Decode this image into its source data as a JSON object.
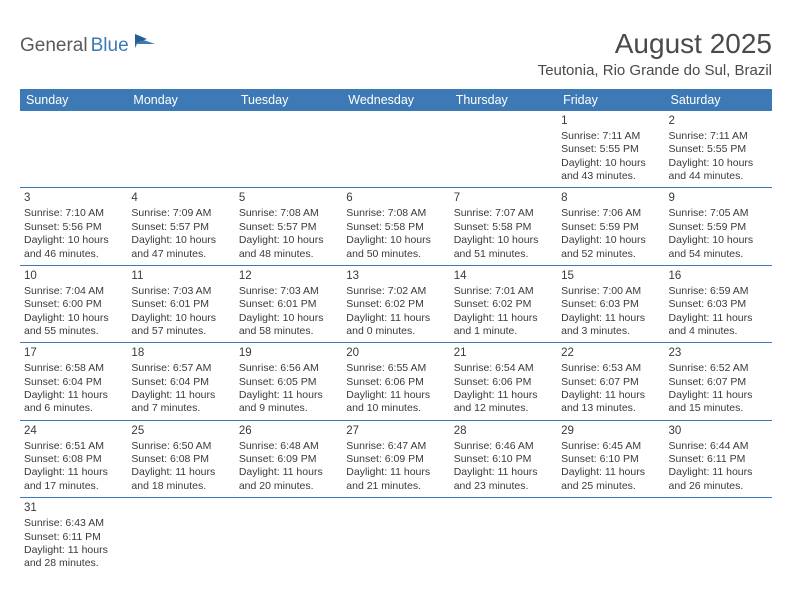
{
  "logo": {
    "text1": "General",
    "text2": "Blue"
  },
  "title": "August 2025",
  "location": "Teutonia, Rio Grande do Sul, Brazil",
  "colors": {
    "header_bg": "#3d7ab5",
    "header_text": "#ffffff",
    "grid_line": "#3d7ab5",
    "body_text": "#3a3a3a",
    "title_text": "#4a4a4a",
    "logo_gray": "#5a5a5a",
    "logo_blue": "#3d7ab5",
    "background": "#ffffff"
  },
  "typography": {
    "title_fontsize": 28,
    "location_fontsize": 15,
    "dayheader_fontsize": 12.5,
    "daynum_fontsize": 11.5,
    "cell_fontsize": 10.5
  },
  "day_headers": [
    "Sunday",
    "Monday",
    "Tuesday",
    "Wednesday",
    "Thursday",
    "Friday",
    "Saturday"
  ],
  "weeks": [
    [
      null,
      null,
      null,
      null,
      null,
      {
        "n": "1",
        "sr": "Sunrise: 7:11 AM",
        "ss": "Sunset: 5:55 PM",
        "d1": "Daylight: 10 hours",
        "d2": "and 43 minutes."
      },
      {
        "n": "2",
        "sr": "Sunrise: 7:11 AM",
        "ss": "Sunset: 5:55 PM",
        "d1": "Daylight: 10 hours",
        "d2": "and 44 minutes."
      }
    ],
    [
      {
        "n": "3",
        "sr": "Sunrise: 7:10 AM",
        "ss": "Sunset: 5:56 PM",
        "d1": "Daylight: 10 hours",
        "d2": "and 46 minutes."
      },
      {
        "n": "4",
        "sr": "Sunrise: 7:09 AM",
        "ss": "Sunset: 5:57 PM",
        "d1": "Daylight: 10 hours",
        "d2": "and 47 minutes."
      },
      {
        "n": "5",
        "sr": "Sunrise: 7:08 AM",
        "ss": "Sunset: 5:57 PM",
        "d1": "Daylight: 10 hours",
        "d2": "and 48 minutes."
      },
      {
        "n": "6",
        "sr": "Sunrise: 7:08 AM",
        "ss": "Sunset: 5:58 PM",
        "d1": "Daylight: 10 hours",
        "d2": "and 50 minutes."
      },
      {
        "n": "7",
        "sr": "Sunrise: 7:07 AM",
        "ss": "Sunset: 5:58 PM",
        "d1": "Daylight: 10 hours",
        "d2": "and 51 minutes."
      },
      {
        "n": "8",
        "sr": "Sunrise: 7:06 AM",
        "ss": "Sunset: 5:59 PM",
        "d1": "Daylight: 10 hours",
        "d2": "and 52 minutes."
      },
      {
        "n": "9",
        "sr": "Sunrise: 7:05 AM",
        "ss": "Sunset: 5:59 PM",
        "d1": "Daylight: 10 hours",
        "d2": "and 54 minutes."
      }
    ],
    [
      {
        "n": "10",
        "sr": "Sunrise: 7:04 AM",
        "ss": "Sunset: 6:00 PM",
        "d1": "Daylight: 10 hours",
        "d2": "and 55 minutes."
      },
      {
        "n": "11",
        "sr": "Sunrise: 7:03 AM",
        "ss": "Sunset: 6:01 PM",
        "d1": "Daylight: 10 hours",
        "d2": "and 57 minutes."
      },
      {
        "n": "12",
        "sr": "Sunrise: 7:03 AM",
        "ss": "Sunset: 6:01 PM",
        "d1": "Daylight: 10 hours",
        "d2": "and 58 minutes."
      },
      {
        "n": "13",
        "sr": "Sunrise: 7:02 AM",
        "ss": "Sunset: 6:02 PM",
        "d1": "Daylight: 11 hours",
        "d2": "and 0 minutes."
      },
      {
        "n": "14",
        "sr": "Sunrise: 7:01 AM",
        "ss": "Sunset: 6:02 PM",
        "d1": "Daylight: 11 hours",
        "d2": "and 1 minute."
      },
      {
        "n": "15",
        "sr": "Sunrise: 7:00 AM",
        "ss": "Sunset: 6:03 PM",
        "d1": "Daylight: 11 hours",
        "d2": "and 3 minutes."
      },
      {
        "n": "16",
        "sr": "Sunrise: 6:59 AM",
        "ss": "Sunset: 6:03 PM",
        "d1": "Daylight: 11 hours",
        "d2": "and 4 minutes."
      }
    ],
    [
      {
        "n": "17",
        "sr": "Sunrise: 6:58 AM",
        "ss": "Sunset: 6:04 PM",
        "d1": "Daylight: 11 hours",
        "d2": "and 6 minutes."
      },
      {
        "n": "18",
        "sr": "Sunrise: 6:57 AM",
        "ss": "Sunset: 6:04 PM",
        "d1": "Daylight: 11 hours",
        "d2": "and 7 minutes."
      },
      {
        "n": "19",
        "sr": "Sunrise: 6:56 AM",
        "ss": "Sunset: 6:05 PM",
        "d1": "Daylight: 11 hours",
        "d2": "and 9 minutes."
      },
      {
        "n": "20",
        "sr": "Sunrise: 6:55 AM",
        "ss": "Sunset: 6:06 PM",
        "d1": "Daylight: 11 hours",
        "d2": "and 10 minutes."
      },
      {
        "n": "21",
        "sr": "Sunrise: 6:54 AM",
        "ss": "Sunset: 6:06 PM",
        "d1": "Daylight: 11 hours",
        "d2": "and 12 minutes."
      },
      {
        "n": "22",
        "sr": "Sunrise: 6:53 AM",
        "ss": "Sunset: 6:07 PM",
        "d1": "Daylight: 11 hours",
        "d2": "and 13 minutes."
      },
      {
        "n": "23",
        "sr": "Sunrise: 6:52 AM",
        "ss": "Sunset: 6:07 PM",
        "d1": "Daylight: 11 hours",
        "d2": "and 15 minutes."
      }
    ],
    [
      {
        "n": "24",
        "sr": "Sunrise: 6:51 AM",
        "ss": "Sunset: 6:08 PM",
        "d1": "Daylight: 11 hours",
        "d2": "and 17 minutes."
      },
      {
        "n": "25",
        "sr": "Sunrise: 6:50 AM",
        "ss": "Sunset: 6:08 PM",
        "d1": "Daylight: 11 hours",
        "d2": "and 18 minutes."
      },
      {
        "n": "26",
        "sr": "Sunrise: 6:48 AM",
        "ss": "Sunset: 6:09 PM",
        "d1": "Daylight: 11 hours",
        "d2": "and 20 minutes."
      },
      {
        "n": "27",
        "sr": "Sunrise: 6:47 AM",
        "ss": "Sunset: 6:09 PM",
        "d1": "Daylight: 11 hours",
        "d2": "and 21 minutes."
      },
      {
        "n": "28",
        "sr": "Sunrise: 6:46 AM",
        "ss": "Sunset: 6:10 PM",
        "d1": "Daylight: 11 hours",
        "d2": "and 23 minutes."
      },
      {
        "n": "29",
        "sr": "Sunrise: 6:45 AM",
        "ss": "Sunset: 6:10 PM",
        "d1": "Daylight: 11 hours",
        "d2": "and 25 minutes."
      },
      {
        "n": "30",
        "sr": "Sunrise: 6:44 AM",
        "ss": "Sunset: 6:11 PM",
        "d1": "Daylight: 11 hours",
        "d2": "and 26 minutes."
      }
    ],
    [
      {
        "n": "31",
        "sr": "Sunrise: 6:43 AM",
        "ss": "Sunset: 6:11 PM",
        "d1": "Daylight: 11 hours",
        "d2": "and 28 minutes."
      },
      null,
      null,
      null,
      null,
      null,
      null
    ]
  ]
}
